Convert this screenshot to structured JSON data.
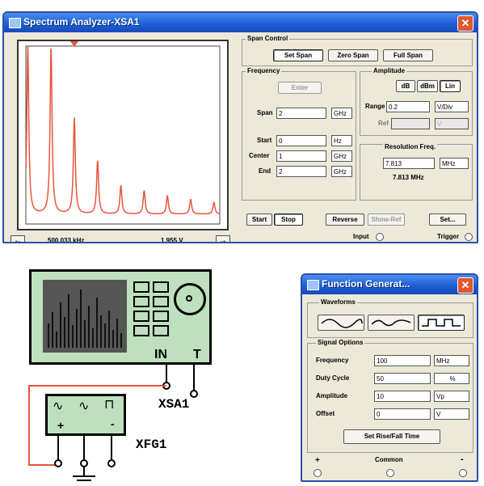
{
  "colors": {
    "title_bar": "#1f5fd6",
    "plot_trace": "#e8553a",
    "marker": "#e8553a",
    "wire": "#e8553a"
  },
  "spectrum_analyzer": {
    "title": "Spectrum Analyzer-XSA1",
    "close_glyph": "✕",
    "readout": {
      "frequency": "500.033 kHz",
      "amplitude": "1.955 V"
    },
    "span_control": {
      "label": "Span Control",
      "buttons": [
        "Set Span",
        "Zero Span",
        "Full Span"
      ]
    },
    "frequency": {
      "label": "Frequency",
      "enter_button": "Enter",
      "rows": [
        {
          "label": "Span",
          "value": "2",
          "unit": "GHz"
        },
        {
          "label": "Start",
          "value": "0",
          "unit": "Hz"
        },
        {
          "label": "Center",
          "value": "1",
          "unit": "GHz"
        },
        {
          "label": "End",
          "value": "2",
          "unit": "GHz"
        }
      ]
    },
    "amplitude": {
      "label": "Amplitude",
      "buttons": [
        "dB",
        "dBm",
        "Lin"
      ],
      "range_label": "Range",
      "range_value": "0.2",
      "range_unit": "V/Div",
      "ref_label": "Ref",
      "ref_value": "",
      "ref_unit": "V"
    },
    "resolution": {
      "label": "Resolution Freq.",
      "value": "7.813",
      "unit": "MHz",
      "readout": "7.813 MHz"
    },
    "bottom_buttons": [
      "Start",
      "Stop",
      "Reverse",
      "Show-Ref",
      "Set..."
    ],
    "input_label": "Input",
    "trigger_label": "Trigger"
  },
  "spectrum_plot": {
    "peaks": [
      {
        "position": 0.01,
        "level": 1.0
      },
      {
        "position": 0.13,
        "level": 1.0
      },
      {
        "position": 0.25,
        "level": 0.57
      },
      {
        "position": 0.37,
        "level": 0.32
      },
      {
        "position": 0.49,
        "level": 0.17
      },
      {
        "position": 0.61,
        "level": 0.14
      },
      {
        "position": 0.73,
        "level": 0.11
      },
      {
        "position": 0.85,
        "level": 0.09
      },
      {
        "position": 0.97,
        "level": 0.07
      }
    ],
    "marker_position": 0.25
  },
  "schematic": {
    "analyzer_label": "XSA1",
    "generator_label": "XFG1",
    "in_label": "IN",
    "t_label": "T",
    "wave_glyphs": [
      "∿",
      "∿",
      "⊓"
    ],
    "terminal_labels": [
      "+",
      "-"
    ]
  },
  "function_generator": {
    "title": "Function Generat...",
    "close_glyph": "✕",
    "waveforms_label": "Waveforms",
    "signal_options_label": "Signal Options",
    "rows": [
      {
        "label": "Frequency",
        "value": "100",
        "unit": "MHz"
      },
      {
        "label": "Duty Cycle",
        "value": "50",
        "unit": "%"
      },
      {
        "label": "Amplitude",
        "value": "10",
        "unit": "Vp"
      },
      {
        "label": "Offset",
        "value": "0",
        "unit": "V"
      }
    ],
    "rise_fall_button": "Set Rise/Fall Time",
    "terminal_plus": "+",
    "terminal_common": "Common",
    "terminal_minus": "-"
  }
}
